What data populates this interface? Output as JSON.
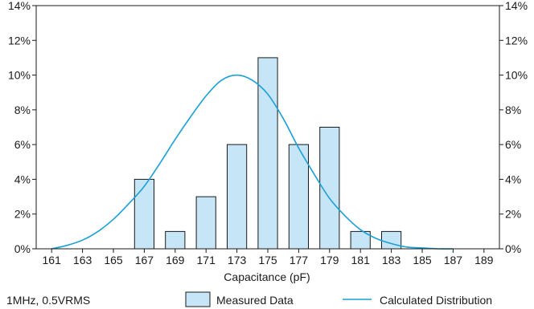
{
  "chart_data": {
    "type": "bar",
    "xlabel": "Capacitance (pF)",
    "ylabel": "",
    "ylim": [
      0,
      14
    ],
    "y_ticks": [
      0,
      2,
      4,
      6,
      8,
      10,
      12,
      14
    ],
    "y_tick_labels": [
      "0%",
      "2%",
      "4%",
      "6%",
      "8%",
      "10%",
      "12%",
      "14%"
    ],
    "x_ticks": [
      161,
      163,
      165,
      167,
      169,
      171,
      173,
      175,
      177,
      179,
      181,
      183,
      185,
      187,
      189
    ],
    "x_tick_labels": [
      "161",
      "163",
      "165",
      "167",
      "169",
      "171",
      "173",
      "175",
      "177",
      "179",
      "181",
      "183",
      "185",
      "187",
      "189"
    ],
    "xlim": [
      160,
      190
    ],
    "grid": false,
    "series": [
      {
        "name": "Measured Data",
        "type": "bar",
        "color": "#c6e6f7",
        "stroke": "#1a1a1a",
        "x": [
          167,
          169,
          171,
          173,
          175,
          177,
          179,
          181,
          183
        ],
        "values": [
          4,
          1,
          3,
          6,
          11,
          6,
          7,
          1,
          1
        ]
      },
      {
        "name": "Calculated Distribution",
        "type": "line",
        "color": "#1aa0d6",
        "x": [
          161,
          162,
          163,
          164,
          165,
          166,
          167,
          168,
          169,
          170,
          171,
          172,
          173,
          174,
          175,
          176,
          177,
          178,
          179,
          180,
          181,
          182,
          183,
          184,
          185,
          186,
          187
        ],
        "values": [
          0.0,
          0.2,
          0.5,
          1.0,
          1.7,
          2.6,
          3.6,
          4.9,
          6.3,
          7.6,
          8.8,
          9.7,
          10.0,
          9.7,
          8.9,
          7.5,
          5.8,
          4.3,
          2.9,
          1.9,
          1.1,
          0.6,
          0.3,
          0.1,
          0.05,
          0.0,
          0.0
        ]
      }
    ],
    "annotation": "1MHz, 0.5VRMS",
    "legend_placement": "bottom"
  }
}
